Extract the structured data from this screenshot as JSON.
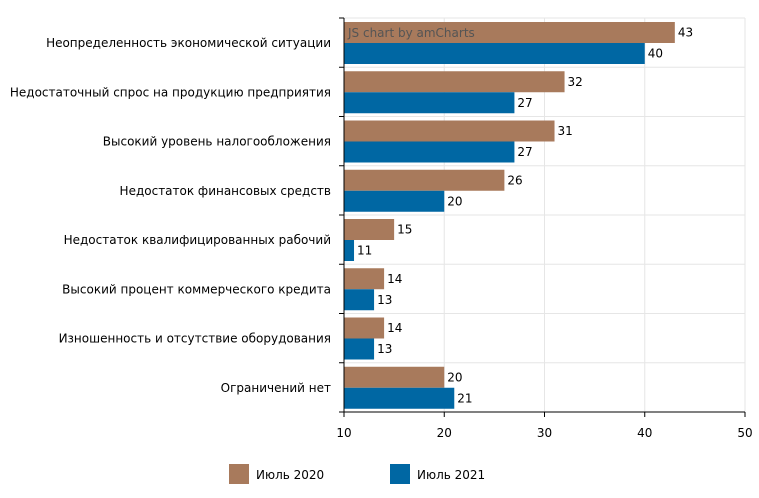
{
  "chart_data": {
    "type": "bar",
    "orientation": "horizontal",
    "title": "",
    "xlabel": "",
    "ylabel": "",
    "xlim": [
      10,
      50
    ],
    "ticks": [
      10,
      20,
      30,
      40,
      50
    ],
    "grid": true,
    "legend_position": "bottom",
    "watermark": "JS chart by amCharts",
    "categories": [
      "Неопределенность экономической ситуации",
      "Недостаточный спрос на продукцию предприятия",
      "Высокий уровень налогообложения",
      "Недостаток финансовых средств",
      "Недостаток квалифицированных рабочий",
      "Высокий процент коммерческого кредита",
      "Изношенность и отсутствие оборудования",
      "Ограничений нет"
    ],
    "series": [
      {
        "name": "Июль 2020",
        "color": "#a87a5c",
        "values": [
          43,
          32,
          31,
          26,
          15,
          14,
          14,
          20
        ]
      },
      {
        "name": "Июль 2021",
        "color": "#0067a3",
        "values": [
          40,
          27,
          27,
          20,
          11,
          13,
          13,
          21
        ]
      }
    ]
  }
}
